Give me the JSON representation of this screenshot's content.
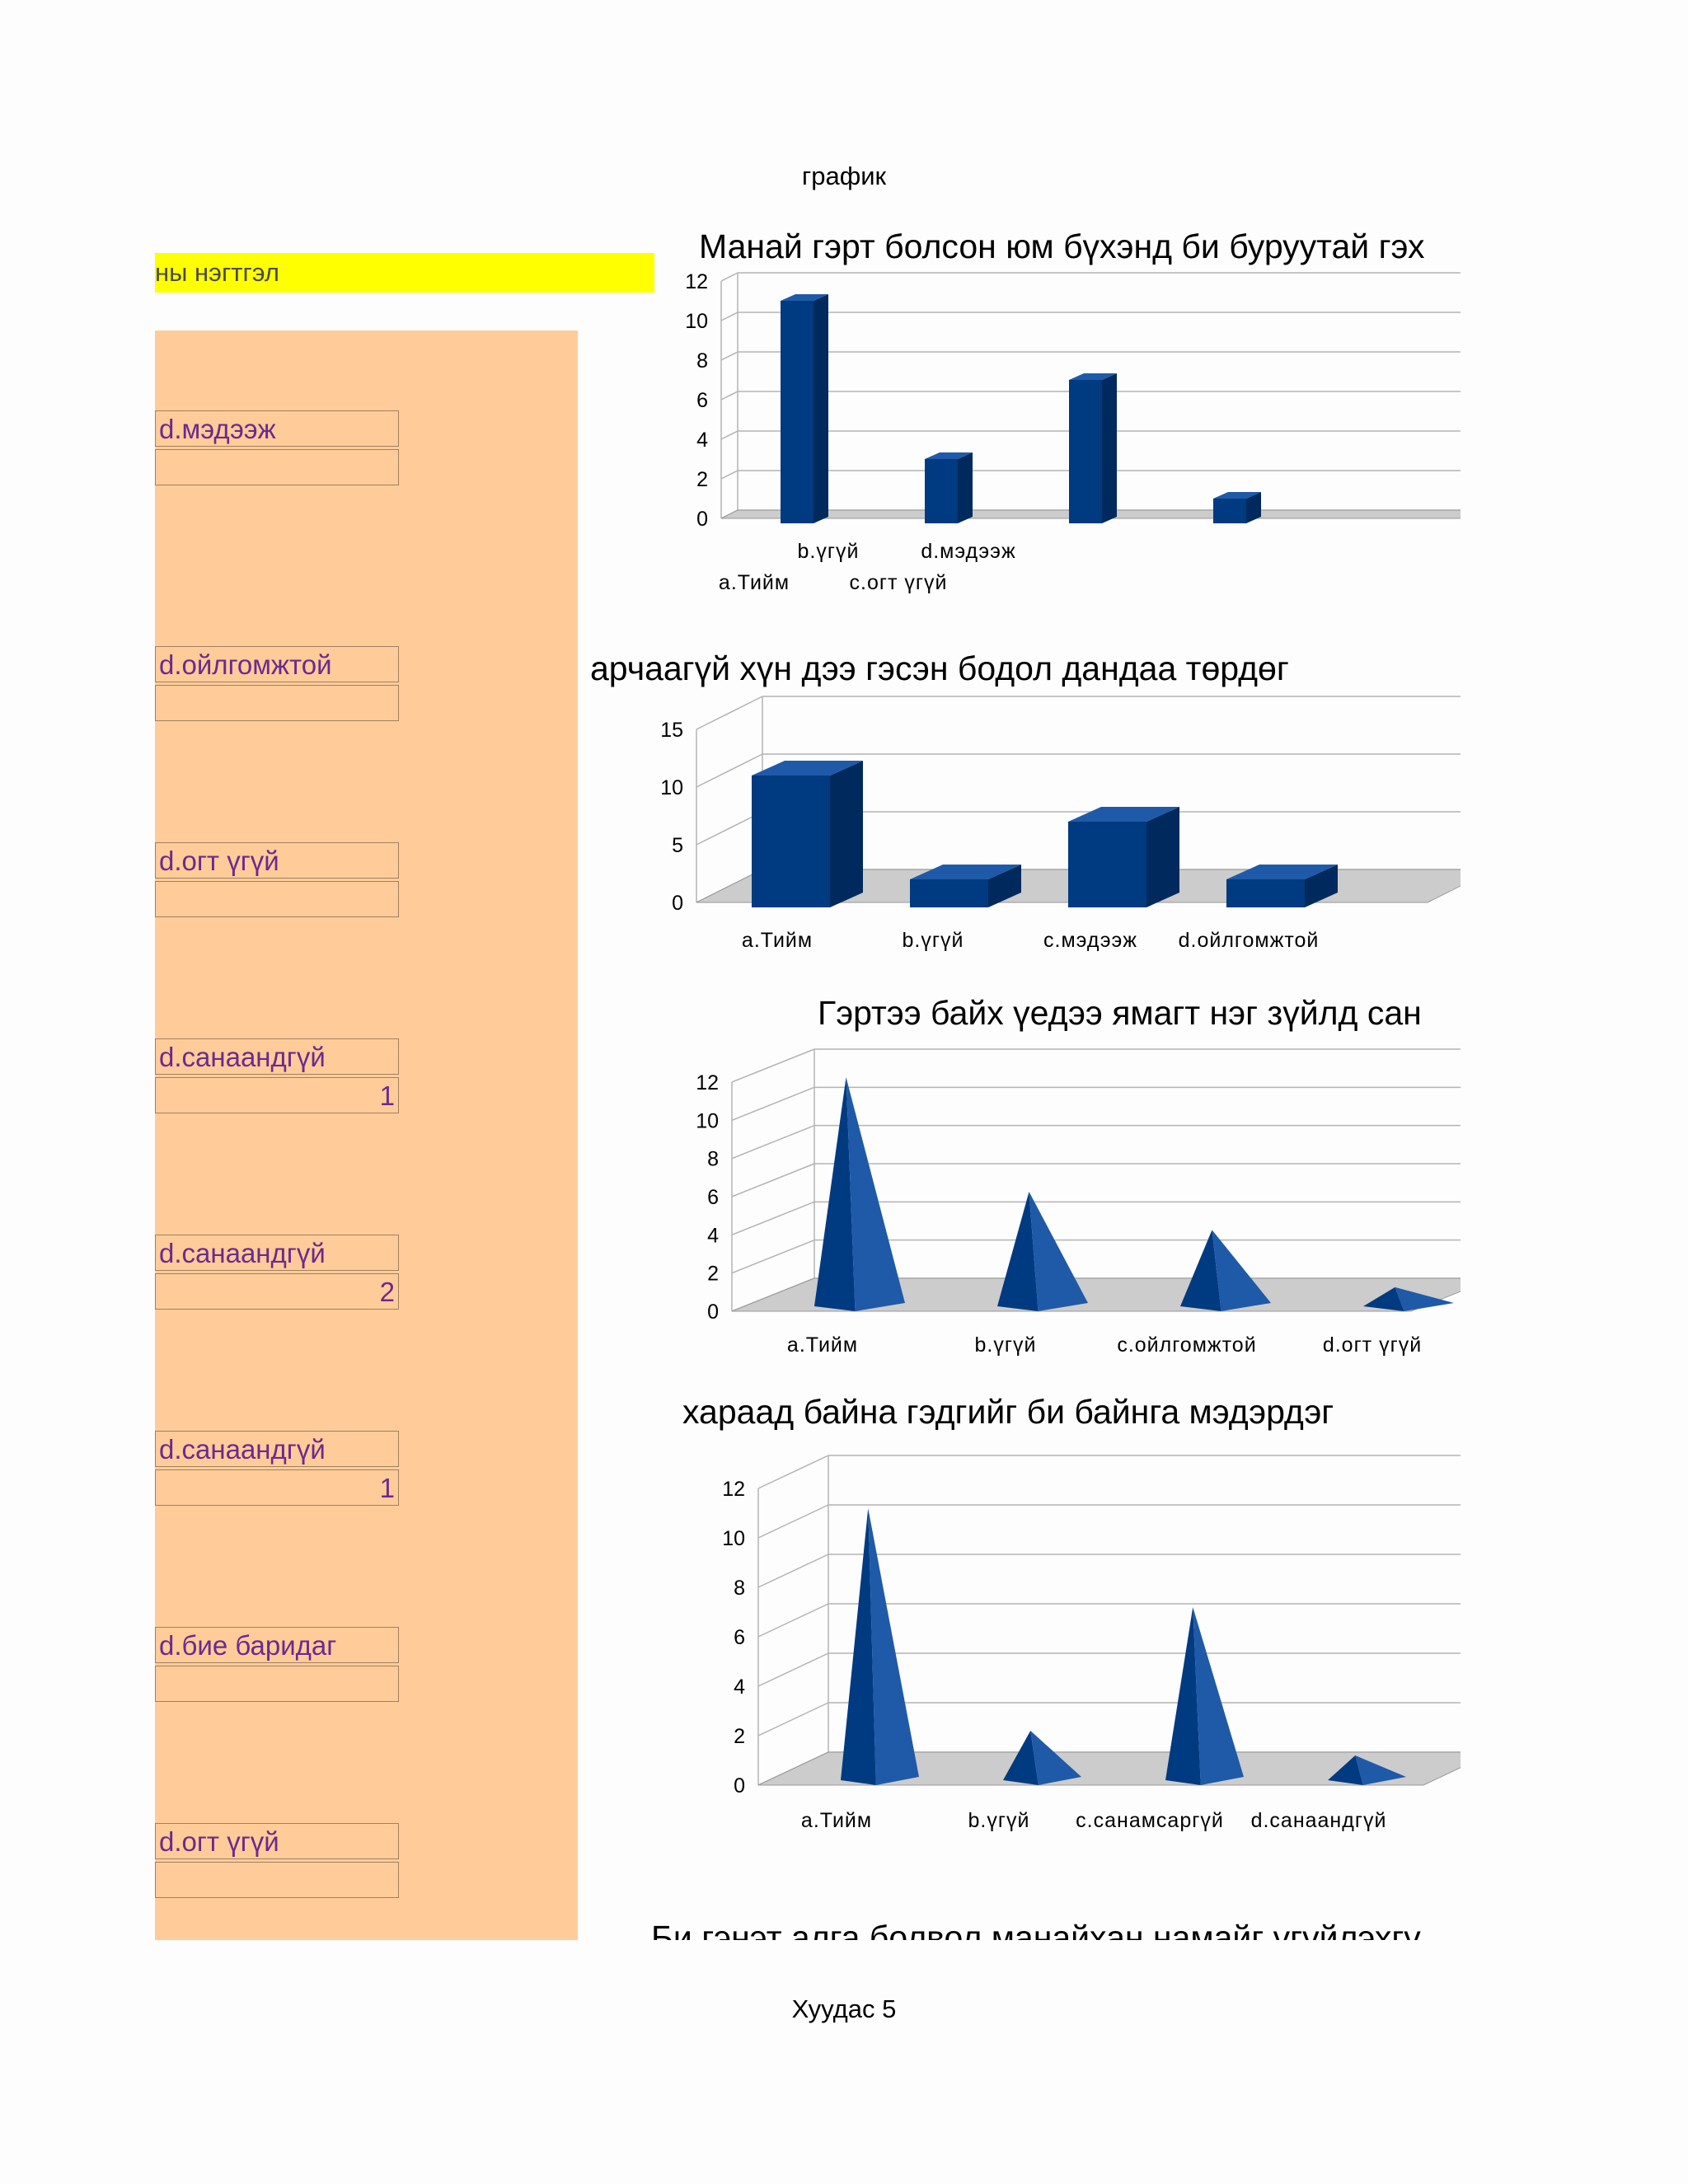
{
  "header": {
    "title": "график"
  },
  "footer": {
    "page": "Хуудас 5"
  },
  "left_panel": {
    "yellow_header": "ны нэгтгэл",
    "cells": [
      {
        "label": "d.мэдээж",
        "value": ""
      },
      {
        "label": "d.ойлгомжтой",
        "value": ""
      },
      {
        "label": "d.огт үгүй",
        "value": ""
      },
      {
        "label": "d.санаандгүй",
        "value": "1"
      },
      {
        "label": "d.санаандгүй",
        "value": "2"
      },
      {
        "label": "d.санаандгүй",
        "value": "1"
      },
      {
        "label": "d.бие баридаг",
        "value": ""
      },
      {
        "label": "d.огт үгүй",
        "value": ""
      }
    ]
  },
  "colors": {
    "bar": "#003a80",
    "bar_side": "#002a5e",
    "bar_top": "#1f5aa8",
    "floor": "#cccccc",
    "grid": "#b3b3b3",
    "panel": "#ffcc99",
    "highlight": "#ffff00",
    "cell_text": "#6c2a8c"
  },
  "chart_data": [
    {
      "type": "bar",
      "style": "3d-column-thin",
      "title": "Манай гэрт болсон юм бүхэнд би буруутай гэх",
      "categories": [
        "a.Тийм",
        "b.үгүй",
        "c.огт үгүй",
        "d.мэдээж"
      ],
      "values": [
        11,
        3,
        7,
        1
      ],
      "ylim": [
        0,
        12
      ],
      "yticks": [
        "0",
        "2",
        "4",
        "6",
        "8",
        "10",
        "12"
      ],
      "grid": true
    },
    {
      "type": "bar",
      "style": "3d-box",
      "title": "арчаагүй хүн дээ гэсэн бодол дандаа төрдөг",
      "categories": [
        "a.Тийм",
        "b.үгүй",
        "c.мэдээж",
        "d.ойлгомжтой"
      ],
      "values": [
        11,
        2,
        7,
        2
      ],
      "ylim": [
        0,
        15
      ],
      "yticks": [
        "0",
        "5",
        "10",
        "15"
      ],
      "grid": true
    },
    {
      "type": "bar",
      "style": "3d-cone",
      "title": "Гэртээ байх үедээ ямагт нэг зүйлд сан",
      "categories": [
        "a.Тийм",
        "b.үгүй",
        "c.ойлгомжтой",
        "d.огт үгүй"
      ],
      "values": [
        12,
        6,
        4,
        1
      ],
      "ylim": [
        0,
        12
      ],
      "yticks": [
        "0",
        "2",
        "4",
        "6",
        "8",
        "10",
        "12"
      ],
      "grid": true
    },
    {
      "type": "bar",
      "style": "3d-cone",
      "title": "хараад байна гэдгийг би байнга мэдэрдэг",
      "categories": [
        "a.Тийм",
        "b.үгүй",
        "c.санамсаргүй",
        "d.санаандгүй"
      ],
      "values": [
        11,
        2,
        7,
        1
      ],
      "ylim": [
        0,
        12
      ],
      "yticks": [
        "0",
        "2",
        "4",
        "6",
        "8",
        "10",
        "12"
      ],
      "grid": true
    },
    {
      "type": "bar",
      "title": "Би гэнэт алга болвол манайхан намайг үгүйлэхгү"
    }
  ]
}
